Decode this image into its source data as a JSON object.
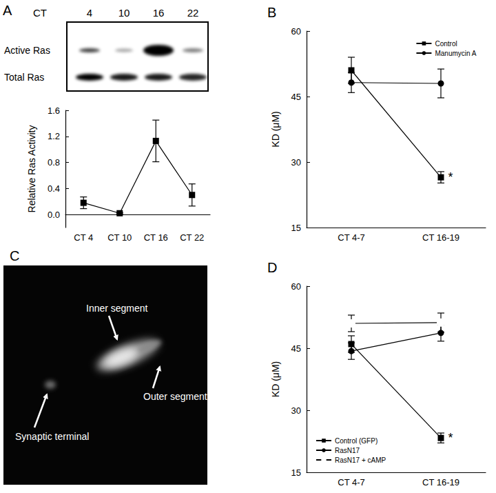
{
  "blot": {
    "panel": "A",
    "header": "CT",
    "lanes": [
      "4",
      "10",
      "16",
      "22"
    ],
    "rows": [
      "Active Ras",
      "Total Ras"
    ]
  },
  "image": {
    "panel": "C",
    "labels": [
      "Inner segment",
      "Outer segment",
      "Synaptic terminal"
    ]
  },
  "chart_data": [
    {
      "type": "line",
      "categories": [
        "CT 4",
        "CT 10",
        "CT 16",
        "CT 22"
      ],
      "y_label": "Relative Ras Activity",
      "values": [
        0.18,
        0.02,
        1.13,
        0.3
      ],
      "errors": [
        0.09,
        0.01,
        0.32,
        0.17
      ],
      "color": "#000000",
      "marker": "square",
      "ylim": [
        -0.2,
        1.6
      ],
      "yticks": [
        {
          "value": 0,
          "label": "0.0"
        },
        0.4,
        0.8,
        1.2,
        1.6
      ],
      "grid": false
    },
    {
      "type": "line",
      "title": "B",
      "categories": [
        "CT 4-7",
        "CT 16-19"
      ],
      "y_label": "KD (μM)",
      "ylim": [
        15,
        60
      ],
      "yticks": [
        15,
        30,
        45,
        60
      ],
      "grid": false,
      "legend": "upper right",
      "series": [
        {
          "name": "Control",
          "color": "#000000",
          "marker": "square",
          "values": [
            51,
            26.5
          ],
          "errors": [
            3,
            1.3
          ]
        },
        {
          "name": "Manumycin A",
          "color": "#000000",
          "marker": "circle",
          "values": [
            48.2,
            48
          ],
          "errors": [
            2.3,
            3.3
          ]
        }
      ],
      "annotations": [
        {
          "text": "*",
          "series": "Control",
          "category": "CT 16-19"
        }
      ]
    },
    {
      "type": "line",
      "title": "D",
      "categories": [
        "CT 4-7",
        "CT 16-19"
      ],
      "y_label": "KD (μM)",
      "ylim": [
        15,
        60
      ],
      "yticks": [
        15,
        30,
        45,
        60
      ],
      "grid": false,
      "legend": "lower left",
      "series": [
        {
          "name": "Control (GFP)",
          "color": "#000000",
          "marker": "square",
          "values": [
            46,
            23.3
          ],
          "errors": [
            2,
            1.2
          ]
        },
        {
          "name": "RasN17",
          "color": "#000000",
          "marker": "circle",
          "values": [
            44.3,
            48.7
          ],
          "errors": [
            2,
            2
          ]
        },
        {
          "name": "RasN17 + cAMP",
          "color": "#000000",
          "marker": "open circle",
          "values": [
            51,
            51.2
          ],
          "errors": [
            2,
            2.3
          ]
        }
      ],
      "annotations": [
        {
          "text": "*",
          "series": "Control (GFP)",
          "category": "CT 16-19"
        }
      ]
    }
  ]
}
